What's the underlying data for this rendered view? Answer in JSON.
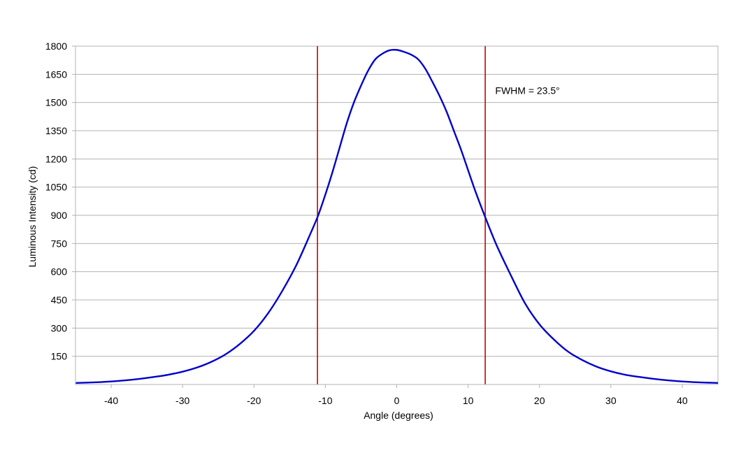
{
  "chart_data": {
    "type": "line",
    "title": "",
    "xlabel": "Angle (degrees)",
    "ylabel": "Luminous Intensity (cd)",
    "xlim": [
      -45,
      45
    ],
    "ylim": [
      0,
      1800
    ],
    "x_ticks": [
      -40,
      -30,
      -20,
      -10,
      0,
      10,
      20,
      30,
      40
    ],
    "x_tick_labels": [
      "-40",
      "-30",
      "-20",
      "-10",
      "0",
      "10",
      "20",
      "30",
      "40"
    ],
    "y_ticks": [
      150,
      300,
      450,
      600,
      750,
      900,
      1050,
      1200,
      1350,
      1500,
      1650,
      1800
    ],
    "y_tick_labels": [
      "150",
      "300",
      "450",
      "600",
      "750",
      "900",
      "1050",
      "1200",
      "1350",
      "1500",
      "1650",
      "1800"
    ],
    "grid": "horizontal",
    "legend": "none",
    "series": [
      {
        "color": "#0000cc",
        "x": [
          -45,
          -42,
          -40,
          -38,
          -36,
          -34,
          -32,
          -30,
          -28,
          -26,
          -24,
          -22,
          -20,
          -18,
          -16,
          -14,
          -12,
          -11,
          -10,
          -9,
          -8,
          -7,
          -6,
          -5,
          -4,
          -3,
          -2,
          -1,
          0,
          1,
          2,
          3,
          4,
          5,
          6,
          7,
          8,
          9,
          10,
          11,
          12.4,
          14,
          16,
          18,
          20,
          22,
          24,
          26,
          28,
          30,
          32,
          34,
          36,
          38,
          40,
          42,
          45
        ],
        "y": [
          8,
          12,
          16,
          22,
          30,
          40,
          52,
          68,
          90,
          120,
          160,
          215,
          285,
          380,
          500,
          640,
          810,
          900,
          1010,
          1130,
          1260,
          1390,
          1500,
          1590,
          1670,
          1730,
          1760,
          1778,
          1780,
          1770,
          1755,
          1730,
          1680,
          1610,
          1535,
          1450,
          1350,
          1250,
          1140,
          1030,
          890,
          740,
          580,
          430,
          320,
          240,
          175,
          130,
          95,
          70,
          52,
          40,
          30,
          22,
          16,
          12,
          8
        ]
      }
    ],
    "reference_lines": [
      {
        "axis": "x",
        "value": -11.1,
        "color": "#cc0000"
      },
      {
        "axis": "x",
        "value": 12.4,
        "color": "#cc0000"
      }
    ],
    "annotations": [
      {
        "text": "FWHM = 23.5°",
        "x": 13.8,
        "y": 1545
      }
    ]
  }
}
